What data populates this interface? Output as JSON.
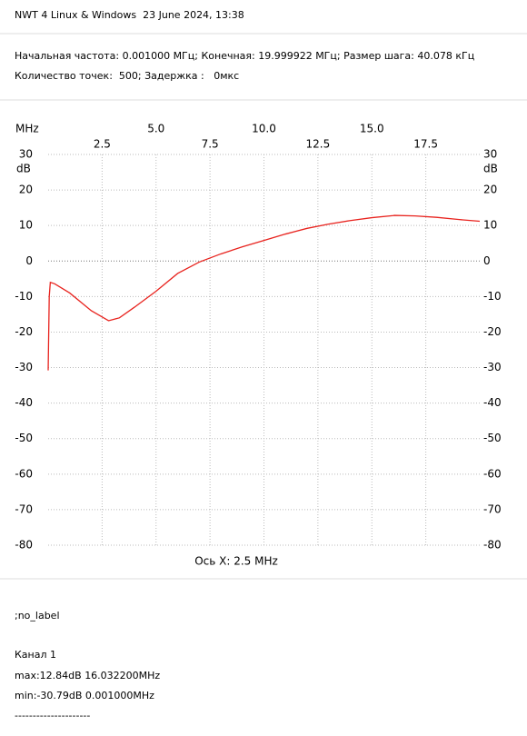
{
  "header": {
    "title": "NWT 4 Linux & Windows  23 June 2024, 13:38",
    "params": [
      "Начальная частота: 0.001000 МГц; Конечная: 19.999922 МГц; Размер шага: 40.078 кГц",
      "Количество точек:  500; Задержка :   0мкс"
    ]
  },
  "chart_data": {
    "type": "line",
    "x_unit": "MHz",
    "y_unit": "dB",
    "x_label": "Ось X: 2.5 MHz",
    "x": [
      0.001,
      0.05,
      0.1,
      0.3,
      1.0,
      2.0,
      2.8,
      3.3,
      4.0,
      5.0,
      6.0,
      7.0,
      8.0,
      9.0,
      10.0,
      11.0,
      12.0,
      13.0,
      14.0,
      15.0,
      16.0,
      16.0322,
      17.0,
      18.0,
      19.0,
      20.0
    ],
    "series": [
      {
        "name": "Канал 1",
        "color": "#e8231e",
        "values": [
          -30.79,
          -10,
          -6,
          -6.4,
          -9,
          -14,
          -16.8,
          -16,
          -13,
          -8.5,
          -3.5,
          -0.3,
          2,
          4,
          5.8,
          7.6,
          9.2,
          10.4,
          11.4,
          12.2,
          12.8,
          12.84,
          12.7,
          12.3,
          11.7,
          11.2
        ]
      }
    ],
    "xlim": [
      0,
      20
    ],
    "ylim": [
      -80,
      30
    ],
    "xticks": [
      2.5,
      {
        "value": 5,
        "label": "5.0"
      },
      7.5,
      {
        "value": 10,
        "label": "10.0"
      },
      12.5,
      {
        "value": 15,
        "label": "15.0"
      },
      17.5
    ],
    "yticks": [
      30,
      20,
      10,
      0,
      -10,
      -20,
      -30,
      -40,
      -50,
      -60,
      -70,
      -80
    ],
    "grid": true
  },
  "footer": {
    "label": ";no_label",
    "channel": "Канал 1",
    "max": "max:12.84dB 16.032200MHz",
    "min": "min:-30.79dB 0.001000MHz",
    "separator": "---------------------"
  }
}
